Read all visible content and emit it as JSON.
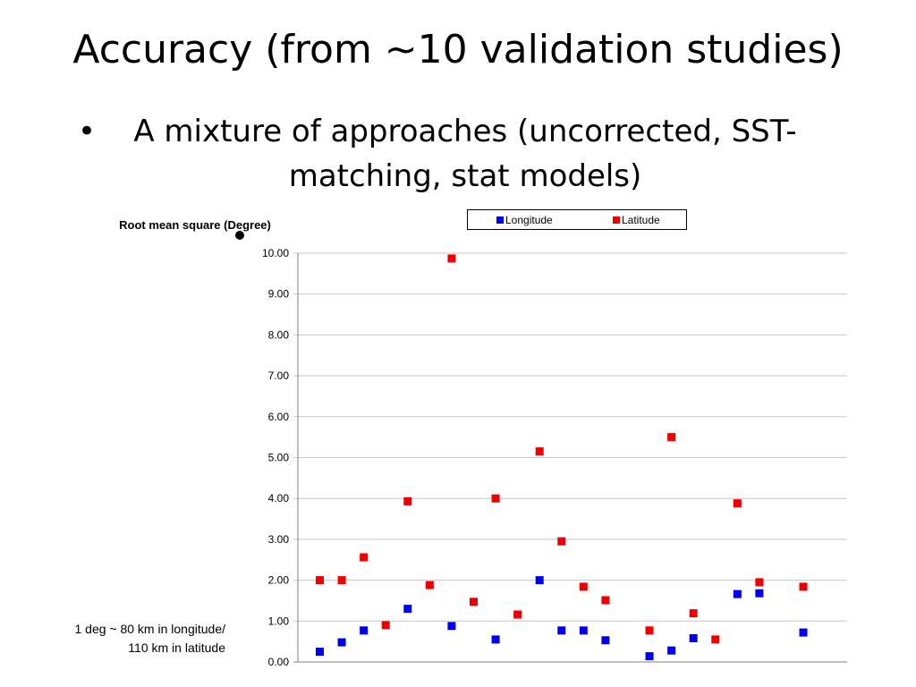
{
  "slide": {
    "title": "Accuracy (from ~10 validation studies)",
    "bullet": "A mixture of approaches (uncorrected, SST-matching, stat models)",
    "bullet_char": "•"
  },
  "note": {
    "line1": "1 deg ~ 80 km in longitude/",
    "line2": "110 km in latitude"
  },
  "colors": {
    "longitude": "#0000ee",
    "latitude": "#ee0000",
    "grid": "#c8c8c8"
  },
  "chart_data": {
    "type": "scatter",
    "title": "Root mean square (Degree)",
    "xlabel": "",
    "ylabel": "",
    "ylim": [
      0,
      10
    ],
    "y_ticks": [
      "0.00",
      "1.00",
      "2.00",
      "3.00",
      "4.00",
      "5.00",
      "6.00",
      "7.00",
      "8.00",
      "9.00",
      "10.00"
    ],
    "x_ticks_shown": false,
    "grid": true,
    "legend": "top",
    "series": [
      {
        "name": "Longitude",
        "points": [
          [
            1,
            0.25
          ],
          [
            2,
            0.48
          ],
          [
            3,
            0.77
          ],
          [
            5,
            1.3
          ],
          [
            7,
            0.88
          ],
          [
            9,
            0.55
          ],
          [
            11,
            2.0
          ],
          [
            12,
            0.77
          ],
          [
            13,
            0.77
          ],
          [
            14,
            0.53
          ],
          [
            16,
            0.14
          ],
          [
            17,
            0.28
          ],
          [
            18,
            0.58
          ],
          [
            20,
            1.66
          ],
          [
            21,
            1.68
          ],
          [
            23,
            0.72
          ]
        ]
      },
      {
        "name": "Latitude",
        "points": [
          [
            1,
            2.0
          ],
          [
            2,
            2.0
          ],
          [
            3,
            2.56
          ],
          [
            4,
            0.9
          ],
          [
            5,
            3.93
          ],
          [
            6,
            1.88
          ],
          [
            7,
            9.87
          ],
          [
            8,
            1.47
          ],
          [
            9,
            4.0
          ],
          [
            10,
            1.16
          ],
          [
            11,
            5.15
          ],
          [
            12,
            2.95
          ],
          [
            13,
            1.84
          ],
          [
            14,
            1.51
          ],
          [
            16,
            0.77
          ],
          [
            17,
            5.5
          ],
          [
            18,
            1.19
          ],
          [
            19,
            0.55
          ],
          [
            20,
            3.88
          ],
          [
            21,
            1.95
          ],
          [
            23,
            1.84
          ]
        ]
      }
    ]
  }
}
